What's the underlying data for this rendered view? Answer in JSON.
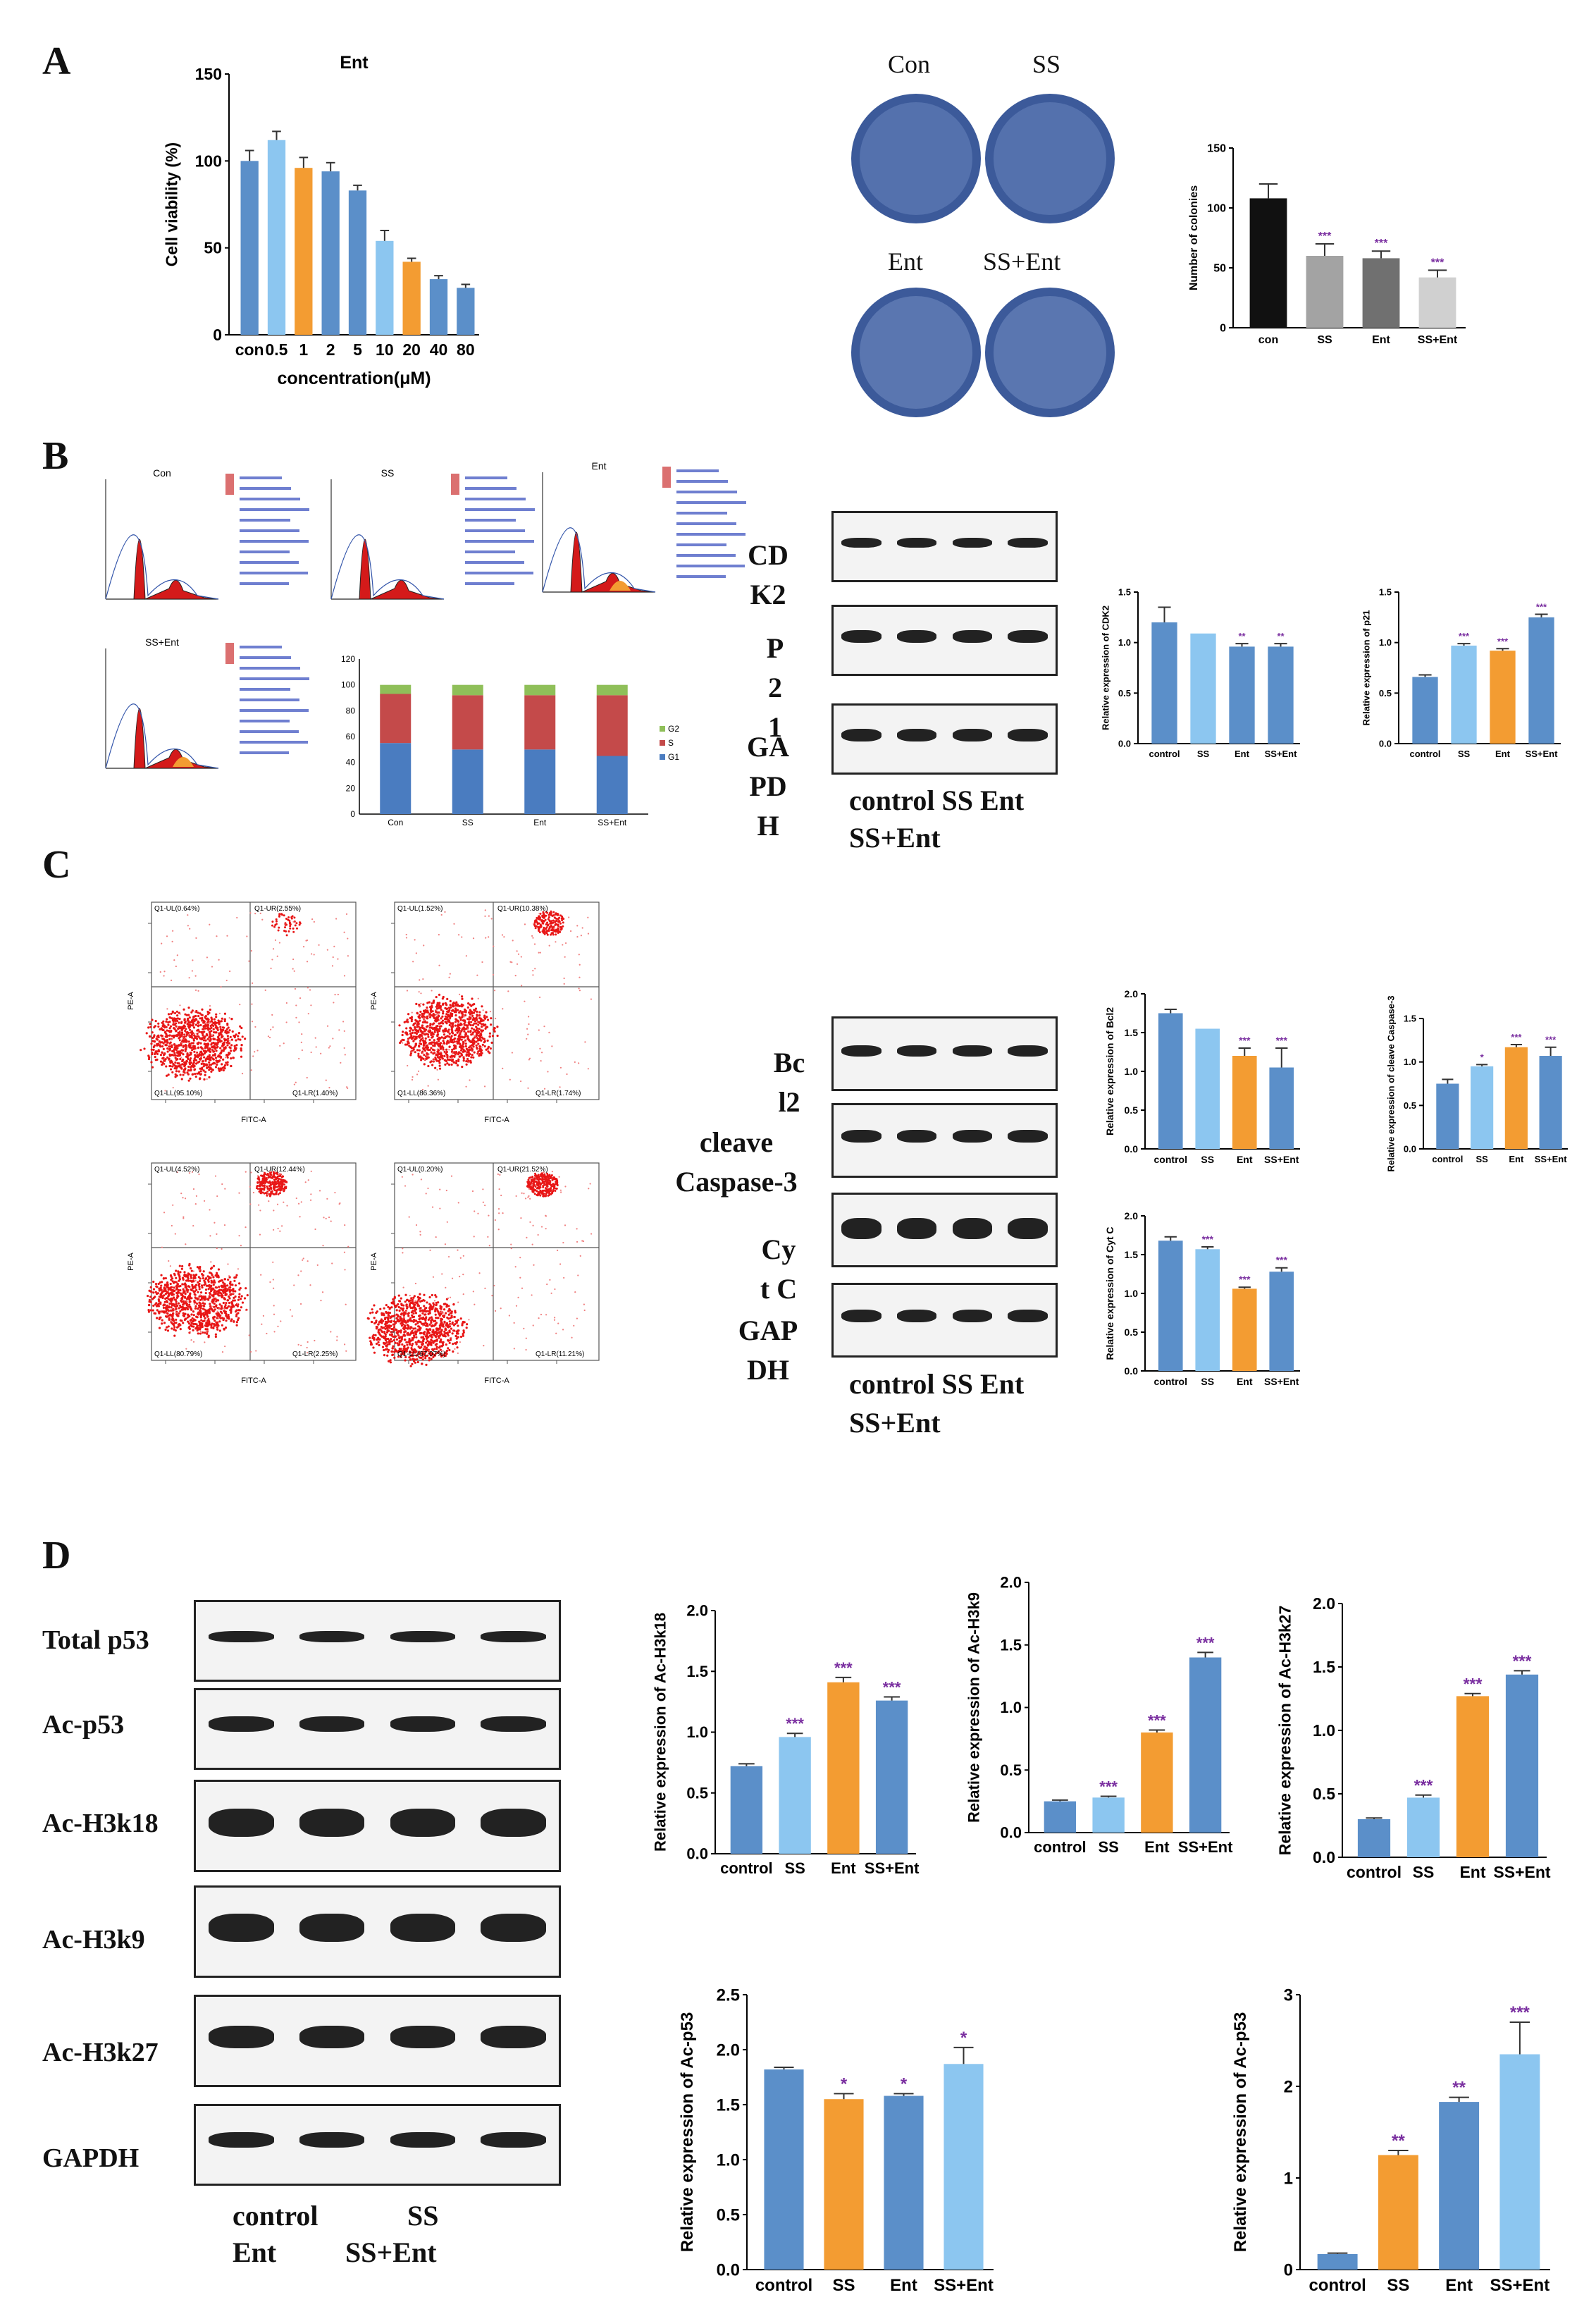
{
  "panels": {
    "A": "A",
    "B": "B",
    "C": "C",
    "D": "D"
  },
  "colors": {
    "blue": "#5b8fc9",
    "lightblue": "#8cc6f0",
    "orange": "#f39c32",
    "darkblue": "#4c7fc0",
    "gray": "#a3a3a3",
    "red": "#d41a1a",
    "green": "#8fbf59"
  },
  "panelA": {
    "viability": {
      "title": "Ent",
      "ylabel": "Cell viability (%)",
      "xlabel": "concentration(μM)"
    },
    "plates": {
      "con": "Con",
      "ss": "SS",
      "ent": "Ent",
      "ssent": "SS+Ent"
    },
    "colonies": {
      "ylabel": "Number of colonies"
    }
  },
  "panelB": {
    "flow_titles": [
      "Con",
      "SS",
      "Ent",
      "SS+Ent"
    ],
    "blot_labels": [
      "CD\nK2",
      "P\n2\n1",
      "GA\nPD\nH"
    ],
    "lanes_line1": "control SS   Ent",
    "lanes_line2": "SS+Ent",
    "stack": {
      "categories": [
        "Con",
        "SS",
        "Ent",
        "SS+Ent"
      ],
      "legend": [
        "G2",
        "S",
        "G1"
      ],
      "G1": [
        55,
        50,
        50,
        45
      ],
      "S": [
        38,
        42,
        42,
        47
      ],
      "G2": [
        7,
        8,
        8,
        8
      ]
    }
  },
  "panelC": {
    "quadrants": [
      {
        "ul": "Q1-UL(0.64%)",
        "ur": "Q1-UR(2.55%)",
        "ll": "Q1-LL(95.10%)",
        "lr": "Q1-LR(1.40%)"
      },
      {
        "ul": "Q1-UL(1.52%)",
        "ur": "Q1-UR(10.38%)",
        "ll": "Q1-LL(86.36%)",
        "lr": "Q1-LR(1.74%)"
      },
      {
        "ul": "Q1-UL(4.52%)",
        "ur": "Q1-UR(12.44%)",
        "ll": "Q1-LL(80.79%)",
        "lr": "Q1-LR(2.25%)"
      },
      {
        "ul": "Q1-UL(0.20%)",
        "ur": "Q1-UR(21.52%)",
        "ll": "Q1-LL(67.07%)",
        "lr": "Q1-LR(11.21%)"
      }
    ],
    "axis_x": "FITC-A",
    "axis_y": "PE-A",
    "blot_labels": [
      "Bc\nl2",
      "cleave\nCaspase-3",
      "Cy\nt C",
      "GAP\nDH"
    ],
    "lanes_line1": "control SS   Ent",
    "lanes_line2": "SS+Ent"
  },
  "panelD": {
    "blot_labels": [
      "Total p53",
      "Ac-p53",
      "Ac-H3k18",
      "Ac-H3k9",
      "Ac-H3k27",
      "GAPDH"
    ],
    "lanes_line1": "control",
    "lanes_line1b": "SS",
    "lanes_line2": "Ent",
    "lanes_line2b": "SS+Ent"
  },
  "chart_data": [
    {
      "id": "A-viability",
      "type": "bar",
      "title": "Ent",
      "xlabel": "concentration(μM)",
      "ylabel": "Cell viability (%)",
      "categories": [
        "con",
        "0.5",
        "1",
        "2",
        "5",
        "10",
        "20",
        "40",
        "80"
      ],
      "values": [
        100,
        112,
        96,
        94,
        83,
        54,
        42,
        32,
        27
      ],
      "errors": [
        6,
        5,
        6,
        5,
        3,
        6,
        2,
        2,
        2
      ],
      "colors": [
        "blue",
        "lightblue",
        "orange",
        "blue",
        "blue",
        "lightblue",
        "orange",
        "blue",
        "blue"
      ],
      "yticks": [
        0,
        50,
        100,
        150
      ],
      "ylim": [
        0,
        150
      ]
    },
    {
      "id": "A-colonies",
      "type": "bar",
      "ylabel": "Number of colonies",
      "categories": [
        "con",
        "SS",
        "Ent",
        "SS+Ent"
      ],
      "values": [
        108,
        60,
        58,
        42
      ],
      "errors": [
        12,
        10,
        6,
        6
      ],
      "sig": [
        "",
        "***",
        "***",
        "***"
      ],
      "colors": [
        "black",
        "gray",
        "dimgray",
        "silver"
      ],
      "yticks": [
        0,
        50,
        100,
        150
      ],
      "ylim": [
        0,
        150
      ]
    },
    {
      "id": "B-stack",
      "type": "bar",
      "subtype": "stacked",
      "categories": [
        "Con",
        "SS",
        "Ent",
        "SS+Ent"
      ],
      "series": [
        {
          "name": "G1",
          "values": [
            55,
            50,
            50,
            45
          ]
        },
        {
          "name": "S",
          "values": [
            38,
            42,
            42,
            47
          ]
        },
        {
          "name": "G2",
          "values": [
            7,
            8,
            8,
            8
          ]
        }
      ],
      "yticks": [
        0,
        20,
        40,
        60,
        80,
        100,
        120
      ],
      "ylim": [
        0,
        120
      ]
    },
    {
      "id": "B-CDK2",
      "type": "bar",
      "ylabel": "Relative expression of CDK2",
      "categories": [
        "control",
        "SS",
        "Ent",
        "SS+Ent"
      ],
      "values": [
        1.2,
        1.09,
        0.96,
        0.96
      ],
      "errors": [
        0.15,
        0,
        0.03,
        0.03
      ],
      "sig": [
        "",
        "",
        "**",
        "**"
      ],
      "colors": [
        "blue",
        "lightblue",
        "blue",
        "blue"
      ],
      "yticks": [
        0.0,
        0.5,
        1.0,
        1.5
      ],
      "ylim": [
        0,
        1.5
      ]
    },
    {
      "id": "B-p21",
      "type": "bar",
      "ylabel": "Relative expression of p21",
      "categories": [
        "control",
        "SS",
        "Ent",
        "SS+Ent"
      ],
      "values": [
        0.66,
        0.97,
        0.92,
        1.25
      ],
      "errors": [
        0.02,
        0.02,
        0.02,
        0.03
      ],
      "sig": [
        "",
        "***",
        "***",
        "***"
      ],
      "colors": [
        "blue",
        "lightblue",
        "orange",
        "blue"
      ],
      "yticks": [
        0.0,
        0.5,
        1.0,
        1.5
      ],
      "ylim": [
        0,
        1.5
      ]
    },
    {
      "id": "C-Bcl2",
      "type": "bar",
      "ylabel": "Relative expression of Bcl2",
      "categories": [
        "control",
        "SS",
        "Ent",
        "SS+Ent"
      ],
      "values": [
        1.75,
        1.55,
        1.2,
        1.05
      ],
      "errors": [
        0.05,
        0,
        0.1,
        0.25
      ],
      "sig": [
        "",
        "",
        "***",
        "***"
      ],
      "colors": [
        "blue",
        "lightblue",
        "orange",
        "blue"
      ],
      "yticks": [
        0.0,
        0.5,
        1.0,
        1.5,
        2.0
      ],
      "ylim": [
        0,
        2.0
      ]
    },
    {
      "id": "C-Caspase3",
      "type": "bar",
      "ylabel": "Relative expression of cleave Caspase-3",
      "categories": [
        "control",
        "SS",
        "Ent",
        "SS+Ent"
      ],
      "values": [
        0.75,
        0.95,
        1.17,
        1.07
      ],
      "errors": [
        0.05,
        0.02,
        0.03,
        0.1
      ],
      "sig": [
        "",
        "*",
        "***",
        "***"
      ],
      "colors": [
        "blue",
        "lightblue",
        "orange",
        "blue"
      ],
      "yticks": [
        0.0,
        0.5,
        1.0,
        1.5
      ],
      "ylim": [
        0,
        1.5
      ]
    },
    {
      "id": "C-CytC",
      "type": "bar",
      "ylabel": "Relative expression of Cyt C",
      "categories": [
        "control",
        "SS",
        "Ent",
        "SS+Ent"
      ],
      "values": [
        1.68,
        1.57,
        1.06,
        1.28
      ],
      "errors": [
        0.05,
        0.03,
        0.02,
        0.05
      ],
      "sig": [
        "",
        "***",
        "***",
        "***"
      ],
      "colors": [
        "blue",
        "lightblue",
        "orange",
        "blue"
      ],
      "yticks": [
        0.0,
        0.5,
        1.0,
        1.5,
        2.0
      ],
      "ylim": [
        0,
        2.0
      ]
    },
    {
      "id": "D-H3k18",
      "type": "bar",
      "ylabel": "Relative expression of Ac-H3k18",
      "categories": [
        "control",
        "SS",
        "Ent",
        "SS+Ent"
      ],
      "values": [
        0.72,
        0.96,
        1.41,
        1.26
      ],
      "errors": [
        0.02,
        0.03,
        0.04,
        0.03
      ],
      "sig": [
        "",
        "***",
        "***",
        "***"
      ],
      "colors": [
        "blue",
        "lightblue",
        "orange",
        "blue"
      ],
      "yticks": [
        0.0,
        0.5,
        1.0,
        1.5,
        2.0
      ],
      "ylim": [
        0,
        2.0
      ]
    },
    {
      "id": "D-H3k9",
      "type": "bar",
      "ylabel": "Relative expression of Ac-H3k9",
      "categories": [
        "control",
        "SS",
        "Ent",
        "SS+Ent"
      ],
      "values": [
        0.25,
        0.28,
        0.8,
        1.4
      ],
      "errors": [
        0.01,
        0.01,
        0.02,
        0.04
      ],
      "sig": [
        "",
        "***",
        "***",
        "***"
      ],
      "colors": [
        "blue",
        "lightblue",
        "orange",
        "blue"
      ],
      "yticks": [
        0.0,
        0.5,
        1.0,
        1.5,
        2.0
      ],
      "ylim": [
        0,
        2.0
      ]
    },
    {
      "id": "D-H3k27",
      "type": "bar",
      "ylabel": "Relative expression of Ac-H3k27",
      "categories": [
        "control",
        "SS",
        "Ent",
        "SS+Ent"
      ],
      "values": [
        0.3,
        0.47,
        1.27,
        1.44
      ],
      "errors": [
        0.01,
        0.02,
        0.02,
        0.03
      ],
      "sig": [
        "",
        "***",
        "***",
        "***"
      ],
      "colors": [
        "blue",
        "lightblue",
        "orange",
        "blue"
      ],
      "yticks": [
        0.0,
        0.5,
        1.0,
        1.5,
        2.0
      ],
      "ylim": [
        0,
        2.0
      ]
    },
    {
      "id": "D-p53a",
      "type": "bar",
      "ylabel": "Relative expression of Ac-p53",
      "categories": [
        "control",
        "SS",
        "Ent",
        "SS+Ent"
      ],
      "values": [
        1.82,
        1.55,
        1.58,
        1.87
      ],
      "errors": [
        0.02,
        0.05,
        0.02,
        0.15
      ],
      "sig": [
        "",
        "*",
        "*",
        "*"
      ],
      "colors": [
        "blue",
        "orange",
        "blue",
        "lightblue"
      ],
      "yticks": [
        0.0,
        0.5,
        1.0,
        1.5,
        2.0,
        2.5
      ],
      "ylim": [
        0,
        2.5
      ]
    },
    {
      "id": "D-p53b",
      "type": "bar",
      "ylabel": "Relative expression of Ac-p53",
      "categories": [
        "control",
        "SS",
        "Ent",
        "SS+Ent"
      ],
      "values": [
        0.17,
        1.25,
        1.83,
        2.35
      ],
      "errors": [
        0.01,
        0.05,
        0.05,
        0.35
      ],
      "sig": [
        "",
        "**",
        "**",
        "***"
      ],
      "colors": [
        "blue",
        "orange",
        "blue",
        "lightblue"
      ],
      "yticks": [
        0,
        1,
        2,
        3
      ],
      "ylim": [
        0,
        3
      ]
    }
  ]
}
